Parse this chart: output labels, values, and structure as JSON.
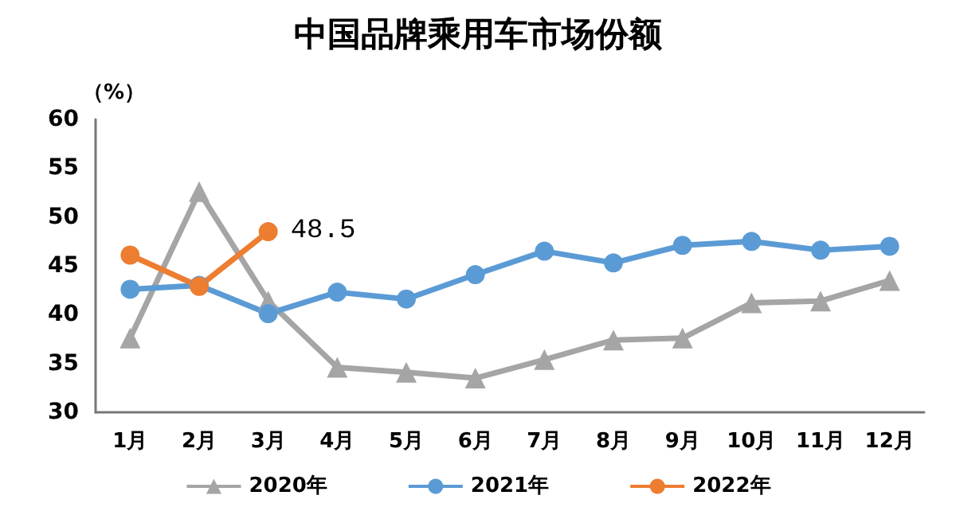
{
  "chart_data": {
    "type": "line",
    "title": "中国品牌乘用车市场份额",
    "ylabel": "（%）",
    "categories": [
      "1月",
      "2月",
      "3月",
      "4月",
      "5月",
      "6月",
      "7月",
      "8月",
      "9月",
      "10月",
      "11月",
      "12月"
    ],
    "series": [
      {
        "name": "2020年",
        "color": "#a5a5a5",
        "marker": "triangle",
        "values": [
          37.6,
          52.6,
          41.4,
          34.6,
          34.1,
          33.5,
          35.4,
          37.4,
          37.6,
          41.2,
          41.4,
          43.5
        ]
      },
      {
        "name": "2021年",
        "color": "#5b9bd5",
        "marker": "circle",
        "values": [
          42.6,
          43.0,
          40.1,
          42.3,
          41.6,
          44.1,
          46.5,
          45.3,
          47.1,
          47.5,
          46.6,
          47.0
        ]
      },
      {
        "name": "2022年",
        "color": "#ed7d31",
        "marker": "circle",
        "values": [
          46.1,
          42.9,
          48.5,
          null,
          null,
          null,
          null,
          null,
          null,
          null,
          null,
          null
        ],
        "value_labels": [
          null,
          null,
          "48.5",
          null,
          null,
          null,
          null,
          null,
          null,
          null,
          null,
          null
        ]
      }
    ],
    "ylim": [
      30,
      60
    ],
    "yticks": [
      30,
      35,
      40,
      45,
      50,
      55,
      60
    ],
    "grid": false,
    "legend": "bottom"
  }
}
